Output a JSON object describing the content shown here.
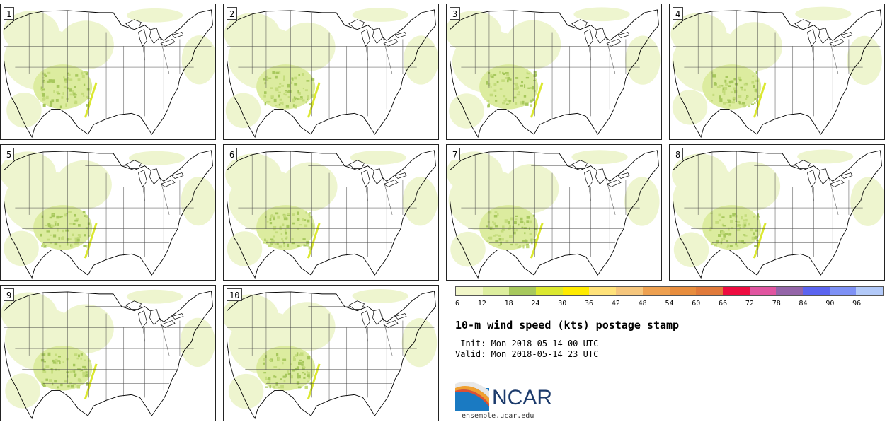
{
  "panels": [
    {
      "label": "1"
    },
    {
      "label": "2"
    },
    {
      "label": "3"
    },
    {
      "label": "4"
    },
    {
      "label": "5"
    },
    {
      "label": "6"
    },
    {
      "label": "7"
    },
    {
      "label": "8"
    },
    {
      "label": "9"
    },
    {
      "label": "10"
    }
  ],
  "colorbar": {
    "colors": [
      "#f1f6c8",
      "#ddee9e",
      "#a7c85d",
      "#dbe830",
      "#ffeb00",
      "#ffe27a",
      "#f5c67d",
      "#eda050",
      "#e78d3e",
      "#e07a3b",
      "#ee0c40",
      "#e055a0",
      "#9465a8",
      "#5b64f0",
      "#7e91f5",
      "#b2c9f8"
    ],
    "ticks": [
      "6",
      "12",
      "18",
      "24",
      "30",
      "36",
      "42",
      "48",
      "54",
      "60",
      "66",
      "72",
      "78",
      "84",
      "90",
      "96"
    ]
  },
  "title": "10-m wind speed (kts) postage stamp",
  "init": " Init: Mon 2018-05-14 00 UTC",
  "valid": "Valid: Mon 2018-05-14 23 UTC",
  "logo": {
    "text": "NCAR",
    "site": "ensemble.ucar.edu"
  }
}
